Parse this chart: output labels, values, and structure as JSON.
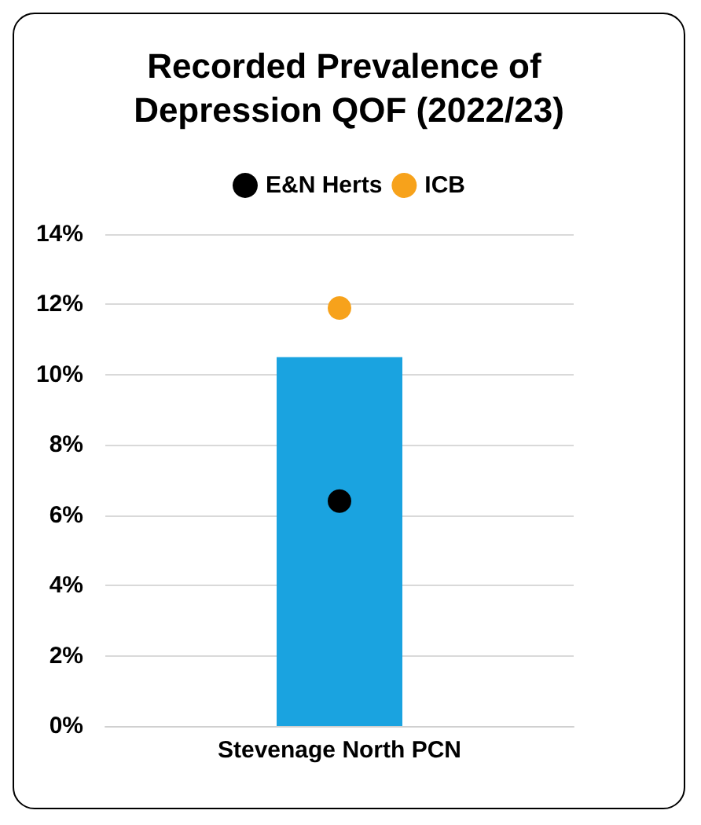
{
  "chart_data": {
    "type": "bar",
    "title": "Recorded Prevalence of Depression QOF (2022/23)",
    "categories": [
      "Stevenage North PCN"
    ],
    "series": [
      {
        "color": "#1aa3e0",
        "values": [
          10.5
        ]
      },
      {
        "type": "scatter",
        "name": "E&N Herts",
        "color": "#000000",
        "x": [
          "Stevenage North PCN"
        ],
        "values": [
          6.4
        ]
      },
      {
        "type": "scatter",
        "name": "ICB",
        "color": "#f7a21b",
        "x": [
          "Stevenage North PCN"
        ],
        "values": [
          11.9
        ]
      }
    ],
    "ylim": [
      0,
      14
    ],
    "yticks": [
      {
        "value": 0,
        "label": "0%"
      },
      {
        "value": 2,
        "label": "2%"
      },
      {
        "value": 4,
        "label": "4%"
      },
      {
        "value": 6,
        "label": "6%"
      },
      {
        "value": 8,
        "label": "8%"
      },
      {
        "value": 10,
        "label": "10%"
      },
      {
        "value": 12,
        "label": "12%"
      },
      {
        "value": 14,
        "label": "14%"
      }
    ],
    "grid": "y",
    "legend": "top",
    "marker": "circle"
  }
}
